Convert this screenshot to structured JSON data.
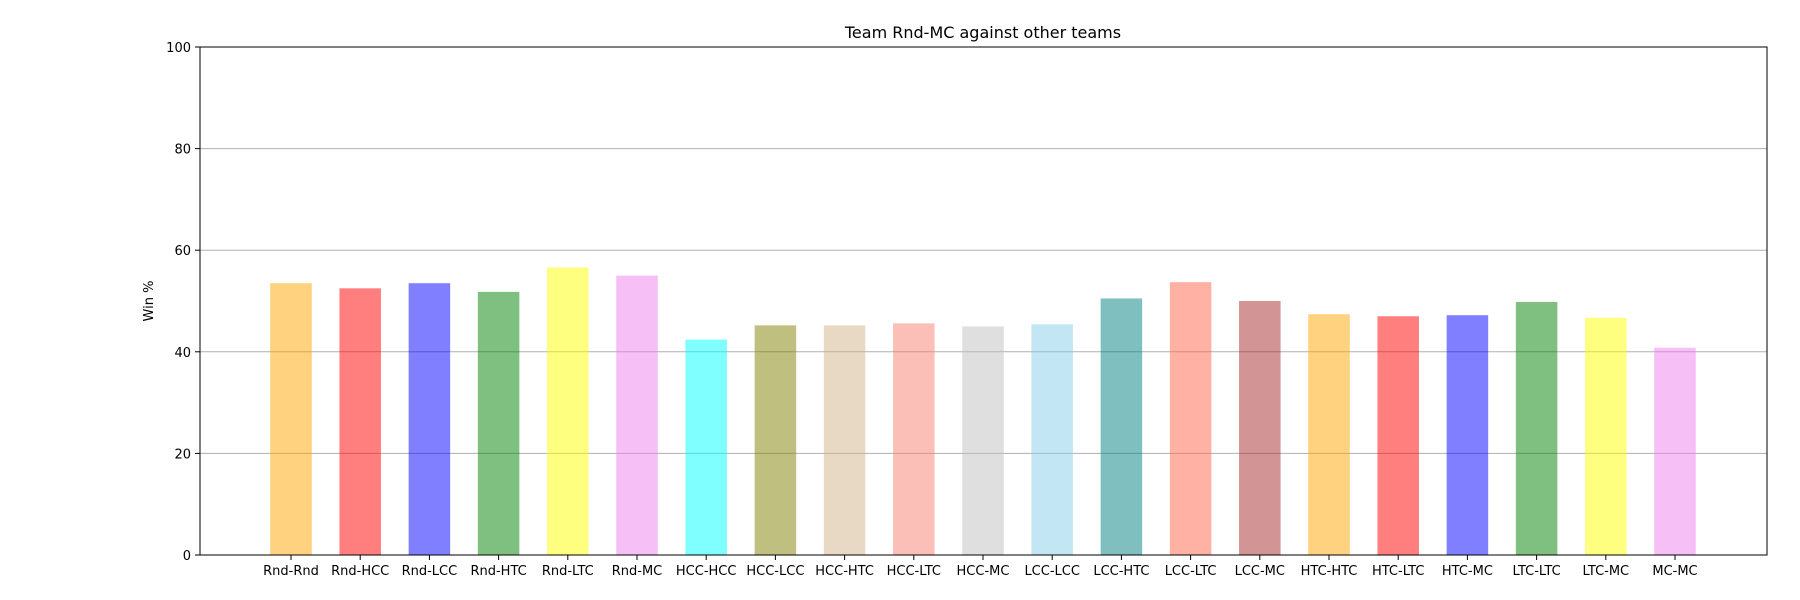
{
  "chart_data": {
    "type": "bar",
    "title": "Team Rnd-MC against other teams",
    "xlabel": "",
    "ylabel": "Win %",
    "ylim": [
      0,
      100
    ],
    "yticks": [
      0,
      20,
      40,
      60,
      80,
      100
    ],
    "grid": "y",
    "categories": [
      "Rnd-Rnd",
      "Rnd-HCC",
      "Rnd-LCC",
      "Rnd-HTC",
      "Rnd-LTC",
      "Rnd-MC",
      "HCC-HCC",
      "HCC-LCC",
      "HCC-HTC",
      "HCC-LTC",
      "HCC-MC",
      "LCC-LCC",
      "LCC-HTC",
      "LCC-LTC",
      "LCC-MC",
      "HTC-HTC",
      "HTC-LTC",
      "HTC-MC",
      "LTC-LTC",
      "LTC-MC",
      "MC-MC"
    ],
    "values": [
      53.5,
      52.5,
      53.5,
      51.8,
      56.6,
      55.0,
      42.4,
      45.2,
      45.2,
      45.6,
      45.0,
      45.4,
      50.5,
      53.7,
      50.0,
      47.4,
      47.0,
      47.2,
      49.8,
      46.7,
      40.8
    ],
    "colors": [
      "#ffa500",
      "#ff0000",
      "#0000ff",
      "#008000",
      "#ffff00",
      "#ee82ee",
      "#00ffff",
      "#808000",
      "#d2b48c",
      "#fa8072",
      "#c0c0c0",
      "#87ceeb",
      "#008080",
      "#ff6347",
      "#a52a2a",
      "#ffa500",
      "#ff0000",
      "#0000ff",
      "#008000",
      "#ffff00",
      "#ee82ee"
    ],
    "bar_opacity": 0.5
  }
}
